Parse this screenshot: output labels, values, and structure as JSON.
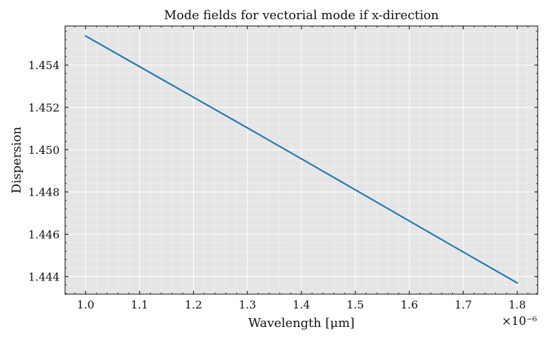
{
  "chart_data": {
    "type": "line",
    "title": "Mode fields for vectorial mode if x-direction",
    "xlabel": "Wavelength [μm]",
    "ylabel": "Dispersion",
    "x_offset_text": "×10⁻⁶",
    "xlim": [
      0.962,
      1.838
    ],
    "ylim": [
      1.44317,
      1.45585
    ],
    "xticks": [
      1.0,
      1.1,
      1.2,
      1.3,
      1.4,
      1.5,
      1.6,
      1.7,
      1.8
    ],
    "xtick_labels": [
      "1.0",
      "1.1",
      "1.2",
      "1.3",
      "1.4",
      "1.5",
      "1.6",
      "1.7",
      "1.8"
    ],
    "yticks": [
      1.444,
      1.446,
      1.448,
      1.45,
      1.452,
      1.454
    ],
    "ytick_labels": [
      "1.444",
      "1.446",
      "1.448",
      "1.450",
      "1.452",
      "1.454"
    ],
    "x_minor_step": 0.02,
    "y_minor_step": 0.0004,
    "grid": true,
    "series": [
      {
        "name": "dispersion",
        "color": "#1f77b4",
        "x": [
          1.0,
          1.1,
          1.2,
          1.3,
          1.4,
          1.5,
          1.6,
          1.7,
          1.8
        ],
        "y": [
          1.45538,
          1.45393,
          1.45248,
          1.45103,
          1.44957,
          1.4481,
          1.44663,
          1.44516,
          1.4437
        ]
      }
    ],
    "background_color": "#e5e5e5",
    "grid_color": "#ffffff"
  }
}
